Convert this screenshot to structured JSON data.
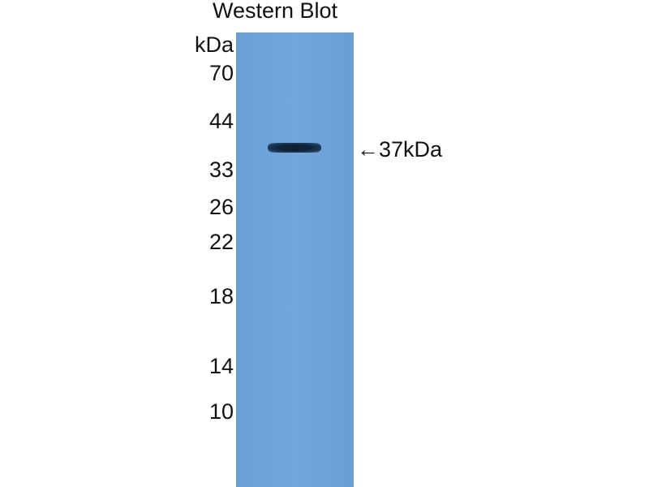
{
  "title": "Western Blot",
  "unit_label": "kDa",
  "markers": [
    "70",
    "44",
    "33",
    "26",
    "22",
    "18",
    "14",
    "10"
  ],
  "band_annotation": "←37kDa",
  "colors": {
    "membrane": "#6ea2d7",
    "band": "#13283f"
  }
}
